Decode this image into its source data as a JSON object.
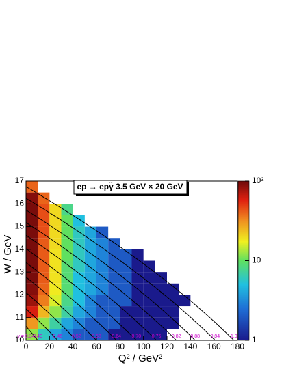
{
  "chart_data": {
    "type": "heatmap",
    "title": "ep → epγ̃ 3.5 GeV × 20 GeV",
    "x_label": "Q² / GeV²",
    "y_label": "W / GeV",
    "xlim": [
      0,
      180
    ],
    "xticks": [
      0,
      20,
      40,
      60,
      80,
      100,
      120,
      140,
      160,
      180
    ],
    "ylim": [
      10,
      17
    ],
    "yticks": [
      10,
      11,
      12,
      13,
      14,
      15,
      16,
      17
    ],
    "zlim": [
      1,
      100
    ],
    "zticks": [
      1,
      10,
      {
        "value": 100,
        "label": "10²"
      }
    ],
    "z_log": true,
    "x_bins": [
      0,
      10,
      20,
      30,
      40,
      50,
      60,
      70,
      80,
      90,
      100,
      110,
      120,
      130,
      140,
      150,
      160,
      170,
      180
    ],
    "y_bins": [
      10,
      10.5,
      11,
      11.5,
      12,
      12.5,
      13,
      13.5,
      14,
      14.5,
      15,
      15.5,
      16,
      16.5,
      17
    ],
    "z": [
      [
        12,
        6,
        4,
        3,
        2,
        2,
        2,
        1,
        1,
        1,
        1,
        1,
        null,
        null,
        null,
        null,
        null,
        null
      ],
      [
        30,
        12,
        7,
        4,
        3,
        2,
        2,
        2,
        1,
        1,
        1,
        1,
        1,
        null,
        null,
        null,
        null,
        null
      ],
      [
        60,
        25,
        12,
        7,
        4,
        3,
        2,
        2,
        1,
        1,
        1,
        1,
        1,
        null,
        null,
        null,
        null,
        null
      ],
      [
        80,
        35,
        16,
        8,
        5,
        3,
        2,
        2,
        2,
        1,
        1,
        1,
        1,
        1,
        null,
        null,
        null,
        null
      ],
      [
        90,
        40,
        18,
        9,
        5,
        4,
        3,
        2,
        2,
        1,
        1,
        1,
        1,
        null,
        null,
        null,
        null,
        null
      ],
      [
        95,
        42,
        19,
        9,
        5,
        4,
        3,
        2,
        2,
        1,
        1,
        1,
        null,
        null,
        null,
        null,
        null,
        null
      ],
      [
        95,
        42,
        19,
        9,
        6,
        4,
        3,
        2,
        2,
        1,
        1,
        null,
        null,
        null,
        null,
        null,
        null,
        null
      ],
      [
        95,
        42,
        19,
        10,
        6,
        4,
        3,
        2,
        2,
        1,
        null,
        null,
        null,
        null,
        null,
        null,
        null,
        null
      ],
      [
        95,
        42,
        20,
        10,
        6,
        4,
        3,
        2,
        null,
        null,
        null,
        null,
        null,
        null,
        null,
        null,
        null,
        null
      ],
      [
        95,
        45,
        20,
        10,
        6,
        4,
        2,
        null,
        null,
        null,
        null,
        null,
        null,
        null,
        null,
        null,
        null,
        null
      ],
      [
        95,
        45,
        20,
        10,
        5,
        null,
        null,
        null,
        null,
        null,
        null,
        null,
        null,
        null,
        null,
        null,
        null,
        null
      ],
      [
        95,
        45,
        20,
        8,
        null,
        null,
        null,
        null,
        null,
        null,
        null,
        null,
        null,
        null,
        null,
        null,
        null,
        null
      ],
      [
        90,
        40,
        null,
        null,
        null,
        null,
        null,
        null,
        null,
        null,
        null,
        null,
        null,
        null,
        null,
        null,
        null,
        null
      ],
      [
        40,
        null,
        null,
        null,
        null,
        null,
        null,
        null,
        null,
        null,
        null,
        null,
        null,
        null,
        null,
        null,
        null,
        null
      ]
    ],
    "y_lines": {
      "labels": [
        "y = 0.34",
        "0.40",
        "0.46",
        "0.52",
        "0.58",
        "0.64",
        "0.70",
        "0.76",
        "0.82",
        "0.88",
        "0.94",
        "1.0"
      ],
      "w_start": [
        null,
        10.62,
        11.39,
        12.1,
        12.78,
        13.42,
        14.03,
        14.62,
        15.18,
        15.73,
        16.25,
        16.76
      ],
      "q2_end": [
        0,
        10,
        27,
        43,
        60,
        77,
        94,
        111,
        128,
        144,
        161,
        177
      ],
      "color": "#000000",
      "label_color": "#cc00cc"
    }
  }
}
